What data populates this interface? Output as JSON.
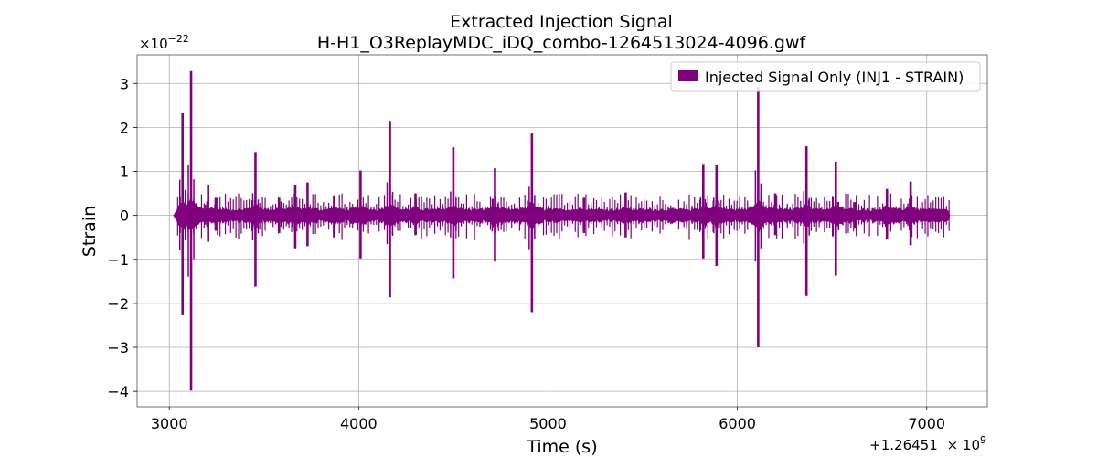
{
  "chart_data": {
    "type": "line",
    "title": "Extracted Injection Signal",
    "subtitle": "H-H1_O3ReplayMDC_iDQ_combo-1264513024-4096.gwf",
    "xlabel": "Time (s)",
    "ylabel": "Strain",
    "x_offset_label": "+1.26451",
    "x_offset_exponent": "9",
    "y_scale_label": "×10",
    "y_scale_exponent": "−22",
    "xlim": [
      2830,
      7320
    ],
    "ylim": [
      -4.35,
      3.65
    ],
    "x_ticks": [
      3000,
      4000,
      5000,
      6000,
      7000
    ],
    "x_tick_labels": [
      "3000",
      "4000",
      "5000",
      "6000",
      "7000"
    ],
    "y_ticks": [
      3,
      2,
      1,
      0,
      -1,
      -2,
      -3,
      -4
    ],
    "y_tick_labels": [
      "3",
      "2",
      "1",
      "0",
      "−1",
      "−2",
      "−3",
      "−4"
    ],
    "grid": true,
    "legend_position": "top-right",
    "series": [
      {
        "name": "Injected Signal Only (INJ1 - STRAIN)",
        "color": "#800080",
        "x_range": [
          3024,
          7120
        ],
        "baseline_amplitude": 0.12,
        "spikes": [
          {
            "x": 3070,
            "max": 2.32,
            "min": -2.27
          },
          {
            "x": 3115,
            "max": 3.28,
            "min": -3.98
          },
          {
            "x": 3205,
            "max": 0.7,
            "min": -0.6
          },
          {
            "x": 3245,
            "max": 0.4,
            "min": -0.35
          },
          {
            "x": 3455,
            "max": 1.44,
            "min": -1.62
          },
          {
            "x": 3580,
            "max": 0.4,
            "min": -0.4
          },
          {
            "x": 3665,
            "max": 0.7,
            "min": -0.75
          },
          {
            "x": 3730,
            "max": 0.75,
            "min": -0.7
          },
          {
            "x": 3870,
            "max": 0.45,
            "min": -0.5
          },
          {
            "x": 4010,
            "max": 1.02,
            "min": -0.98
          },
          {
            "x": 4165,
            "max": 2.15,
            "min": -1.86
          },
          {
            "x": 4300,
            "max": 0.5,
            "min": -0.45
          },
          {
            "x": 4500,
            "max": 1.55,
            "min": -1.43
          },
          {
            "x": 4720,
            "max": 1.07,
            "min": -1.05
          },
          {
            "x": 4915,
            "max": 1.86,
            "min": -2.2
          },
          {
            "x": 5190,
            "max": 0.4,
            "min": -0.4
          },
          {
            "x": 5410,
            "max": 0.52,
            "min": -0.5
          },
          {
            "x": 5820,
            "max": 1.17,
            "min": -0.98
          },
          {
            "x": 5890,
            "max": 1.15,
            "min": -1.15
          },
          {
            "x": 6110,
            "max": 2.92,
            "min": -3.0
          },
          {
            "x": 6200,
            "max": 0.5,
            "min": -0.45
          },
          {
            "x": 6365,
            "max": 1.57,
            "min": -1.83
          },
          {
            "x": 6520,
            "max": 1.22,
            "min": -1.37
          },
          {
            "x": 6620,
            "max": 0.3,
            "min": -0.3
          },
          {
            "x": 6790,
            "max": 0.6,
            "min": -0.55
          },
          {
            "x": 6915,
            "max": 0.77,
            "min": -0.68
          }
        ]
      }
    ]
  }
}
